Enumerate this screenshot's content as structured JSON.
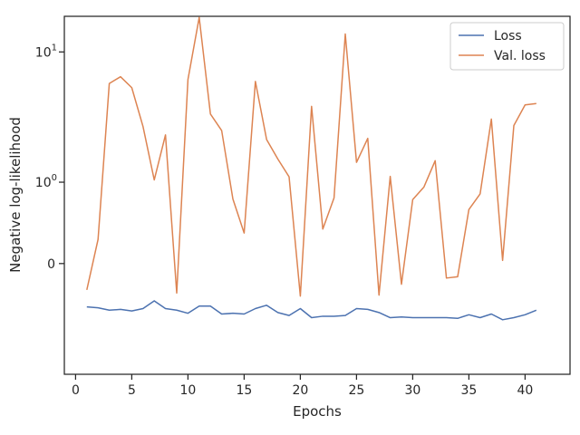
{
  "chart_data": {
    "type": "line",
    "title": "",
    "xlabel": "Epochs",
    "ylabel": "Negative log-likelihood",
    "xlim": [
      -1,
      44
    ],
    "yscale": "symlog",
    "ylim": [
      -1.8,
      17.6
    ],
    "x_ticks": [
      0,
      5,
      10,
      15,
      20,
      25,
      30,
      35,
      40
    ],
    "y_ticks": [
      {
        "value": 0,
        "label": "0"
      },
      {
        "value": 1,
        "label": "10^0"
      },
      {
        "value": 10,
        "label": "10^1"
      }
    ],
    "grid": false,
    "legend_position": "top-right",
    "x": [
      1,
      2,
      3,
      4,
      5,
      6,
      7,
      8,
      9,
      10,
      11,
      12,
      13,
      14,
      15,
      16,
      17,
      18,
      19,
      20,
      21,
      22,
      23,
      24,
      25,
      26,
      27,
      28,
      29,
      30,
      31,
      32,
      33,
      34,
      35,
      36,
      37,
      38,
      39,
      40,
      41
    ],
    "series": [
      {
        "name": "Loss",
        "color": "#4c72b0",
        "values": [
          -0.38,
          -0.39,
          -0.42,
          -0.41,
          -0.43,
          -0.4,
          -0.31,
          -0.4,
          -0.42,
          -0.46,
          -0.37,
          -0.37,
          -0.47,
          -0.46,
          -0.47,
          -0.4,
          -0.36,
          -0.45,
          -0.49,
          -0.4,
          -0.52,
          -0.5,
          -0.5,
          -0.49,
          -0.4,
          -0.41,
          -0.45,
          -0.52,
          -0.51,
          -0.52,
          -0.52,
          -0.52,
          -0.52,
          -0.53,
          -0.48,
          -0.52,
          -0.47,
          -0.55,
          -0.52,
          -0.48,
          -0.42
        ]
      },
      {
        "name": "Val. loss",
        "color": "#dd8452",
        "values": [
          -0.2,
          0.18,
          6.0,
          6.7,
          5.6,
          2.9,
          1.05,
          2.5,
          -0.23,
          6.4,
          17.3,
          3.6,
          2.7,
          0.68,
          0.24,
          6.2,
          2.3,
          1.6,
          1.12,
          -0.26,
          4.1,
          0.28,
          0.7,
          13.3,
          1.5,
          2.35,
          -0.25,
          1.13,
          -0.15,
          0.67,
          0.9,
          1.55,
          -0.1,
          -0.09,
          0.52,
          0.77,
          3.3,
          0.02,
          2.95,
          4.2,
          4.3
        ]
      }
    ]
  }
}
